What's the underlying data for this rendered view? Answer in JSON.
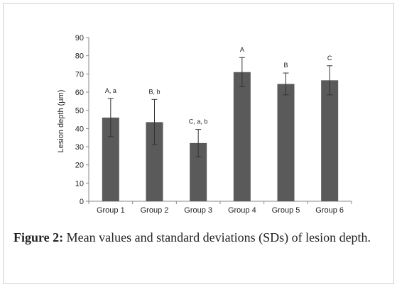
{
  "figure": {
    "label": "Figure 2:",
    "caption": "Mean values and standard deviations (SDs) of lesion depth."
  },
  "chart_data": {
    "type": "bar",
    "categories": [
      "Group 1",
      "Group 2",
      "Group 3",
      "Group 4",
      "Group 5",
      "Group 6"
    ],
    "values": [
      46,
      43.5,
      32,
      71,
      64.5,
      66.5
    ],
    "sd": [
      10.5,
      12.5,
      7.5,
      8,
      6,
      8
    ],
    "annotations": [
      "A, a",
      "B, b",
      "C, a, b",
      "A",
      "B",
      "C"
    ],
    "ylabel": "Lesion depth (µm)",
    "xlabel": "",
    "ylim": [
      0,
      90
    ],
    "yticks": [
      "0",
      "10",
      "20",
      "30",
      "40",
      "50",
      "60",
      "70",
      "80",
      "90"
    ],
    "grid": false,
    "colors": {
      "bar": "#5a5a5a",
      "axis": "#888888",
      "error": "#333333"
    }
  }
}
